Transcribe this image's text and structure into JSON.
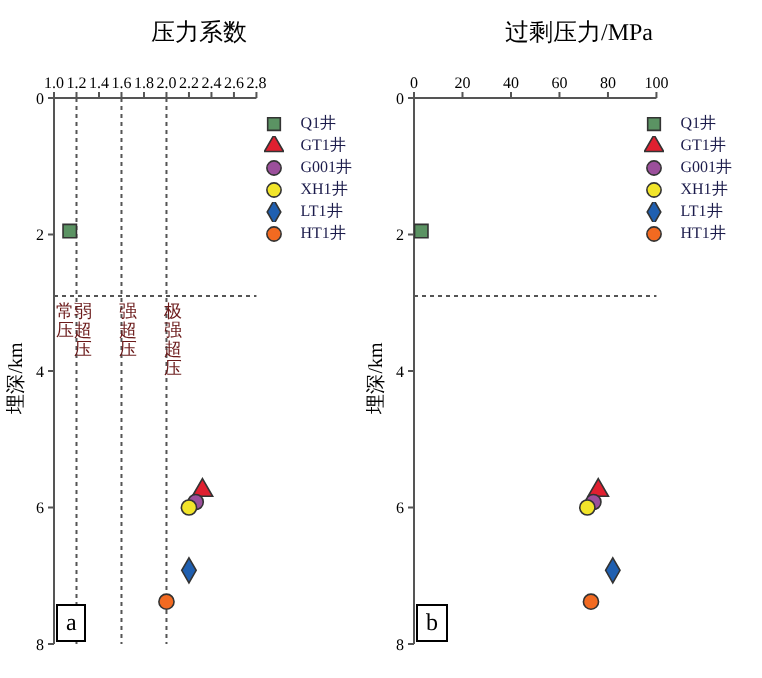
{
  "chart_data": [
    {
      "type": "scatter",
      "title": "压力系数",
      "ylabel": "埋深/km",
      "xlim": [
        1,
        2.8
      ],
      "xticks": [
        {
          "value": 1,
          "label": "1.0"
        },
        1.2,
        1.4,
        1.6,
        1.8,
        {
          "value": 2,
          "label": "2.0"
        },
        2.2,
        2.4,
        2.6,
        2.8
      ],
      "ylim": [
        8,
        0
      ],
      "yticks": [
        0,
        2,
        4,
        6,
        8
      ],
      "legend": "top right",
      "grid": false,
      "series": [
        {
          "name": "Q1井",
          "color": "#5b9363",
          "marker": "square",
          "x": [
            1.14
          ],
          "values": [
            1.95
          ]
        },
        {
          "name": "GT1井",
          "color": "#e02030",
          "marker": "triangle",
          "x": [
            2.32
          ],
          "values": [
            5.75
          ]
        },
        {
          "name": "G001井",
          "color": "#9b4f9b",
          "marker": "circle",
          "x": [
            2.26
          ],
          "values": [
            5.92
          ]
        },
        {
          "name": "XH1井",
          "color": "#f2e52a",
          "marker": "circle",
          "x": [
            2.2
          ],
          "values": [
            6.0
          ]
        },
        {
          "name": "LT1井",
          "color": "#1f5fb0",
          "marker": "diamond",
          "x": [
            2.2
          ],
          "values": [
            6.92
          ]
        },
        {
          "name": "HT1井",
          "color": "#f26a21",
          "marker": "circle",
          "x": [
            2.0
          ],
          "values": [
            7.38
          ]
        }
      ],
      "ref_lines": [
        {
          "axis": "x",
          "value": 1.2,
          "line_style": "dotted"
        },
        {
          "axis": "x",
          "value": 1.6,
          "line_style": "dotted"
        },
        {
          "axis": "x",
          "value": 2.0,
          "line_style": "dotted"
        },
        {
          "axis": "y",
          "value": 2.9,
          "line_style": "dotted"
        }
      ],
      "annotations": [
        {
          "text": "常压",
          "x": 1.1,
          "y": 2.95
        },
        {
          "text": "弱超压",
          "x": 1.26,
          "y": 2.95
        },
        {
          "text": "强超压",
          "x": 1.66,
          "y": 2.95
        },
        {
          "text": "极强超压",
          "x": 2.06,
          "y": 2.95
        },
        "a"
      ]
    },
    {
      "type": "scatter",
      "title": "过剩压力/MPa",
      "ylabel": "埋深/km",
      "xlim": [
        0,
        100
      ],
      "xticks": [
        0,
        20,
        40,
        60,
        80,
        100
      ],
      "ylim": [
        8,
        0
      ],
      "yticks": [
        0,
        2,
        4,
        6,
        8
      ],
      "legend": "top right",
      "grid": false,
      "series": [
        {
          "name": "Q1井",
          "color": "#5b9363",
          "marker": "square",
          "x": [
            3
          ],
          "values": [
            1.95
          ]
        },
        {
          "name": "GT1井",
          "color": "#e02030",
          "marker": "triangle",
          "x": [
            76
          ],
          "values": [
            5.75
          ]
        },
        {
          "name": "G001井",
          "color": "#9b4f9b",
          "marker": "circle",
          "x": [
            74
          ],
          "values": [
            5.92
          ]
        },
        {
          "name": "XH1井",
          "color": "#f2e52a",
          "marker": "circle",
          "x": [
            71.5
          ],
          "values": [
            6.0
          ]
        },
        {
          "name": "LT1井",
          "color": "#1f5fb0",
          "marker": "diamond",
          "x": [
            82
          ],
          "values": [
            6.92
          ]
        },
        {
          "name": "HT1井",
          "color": "#f26a21",
          "marker": "circle",
          "x": [
            73
          ],
          "values": [
            7.38
          ]
        }
      ],
      "ref_lines": [
        {
          "axis": "y",
          "value": 2.9,
          "line_style": "dotted"
        }
      ],
      "annotations": [
        "b"
      ]
    }
  ]
}
